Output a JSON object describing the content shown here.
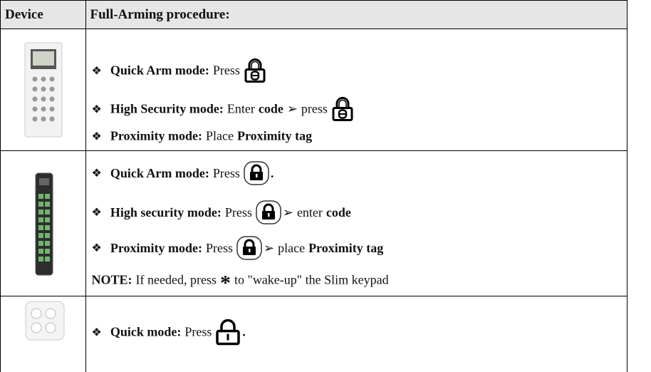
{
  "table": {
    "header": [
      "Device",
      "Full-Arming procedure:"
    ],
    "rows": [
      {
        "lines": [
          [
            {
              "text": "❖"
            },
            {
              "text": "Quick Arm mode:",
              "bold": true
            },
            {
              "text": "Press"
            },
            {
              "icon": "padlock-outline-key"
            }
          ],
          [
            {
              "text": "❖"
            },
            {
              "text": "High Security mode:",
              "bold": true
            },
            {
              "text": "Enter"
            },
            {
              "text": "code",
              "bold": true
            },
            {
              "text": "➢"
            },
            {
              "text": "press"
            },
            {
              "icon": "padlock-outline-key"
            }
          ],
          [
            {
              "text": "❖"
            },
            {
              "text": "Proximity mode:",
              "bold": true
            },
            {
              "text": "Place"
            },
            {
              "text": "Proximity tag",
              "bold": true
            }
          ]
        ]
      },
      {
        "lines": [
          [
            {
              "text": "❖"
            },
            {
              "text": "Quick Arm mode:",
              "bold": true
            },
            {
              "text": "Press"
            },
            {
              "icon": "lock-button"
            },
            {
              "text": ".",
              "bold": true
            }
          ],
          [
            {
              "text": "❖"
            },
            {
              "text": "High security mode:",
              "bold": true
            },
            {
              "text": "Press"
            },
            {
              "icon": "lock-button"
            },
            {
              "text": "➢"
            },
            {
              "text": "enter"
            },
            {
              "text": "code",
              "bold": true
            }
          ],
          [
            {
              "text": "❖"
            },
            {
              "text": "Proximity mode:",
              "bold": true
            },
            {
              "text": "Press"
            },
            {
              "icon": "lock-button"
            },
            {
              "text": "➢"
            },
            {
              "text": "place"
            },
            {
              "text": "Proximity tag",
              "bold": true
            }
          ],
          [
            {
              "text": "NOTE:",
              "bold": true
            },
            {
              "text": "If needed, press"
            },
            {
              "text": "*",
              "big": true
            },
            {
              "text": "to \"wake-up\" the Slim keypad"
            }
          ]
        ]
      },
      {
        "lines": [
          [
            {
              "text": "❖"
            },
            {
              "text": "Quick mode:",
              "bold": true
            },
            {
              "text": "Press"
            },
            {
              "icon": "padlock-outline"
            },
            {
              "text": ".",
              "bold": true
            }
          ]
        ]
      }
    ]
  }
}
